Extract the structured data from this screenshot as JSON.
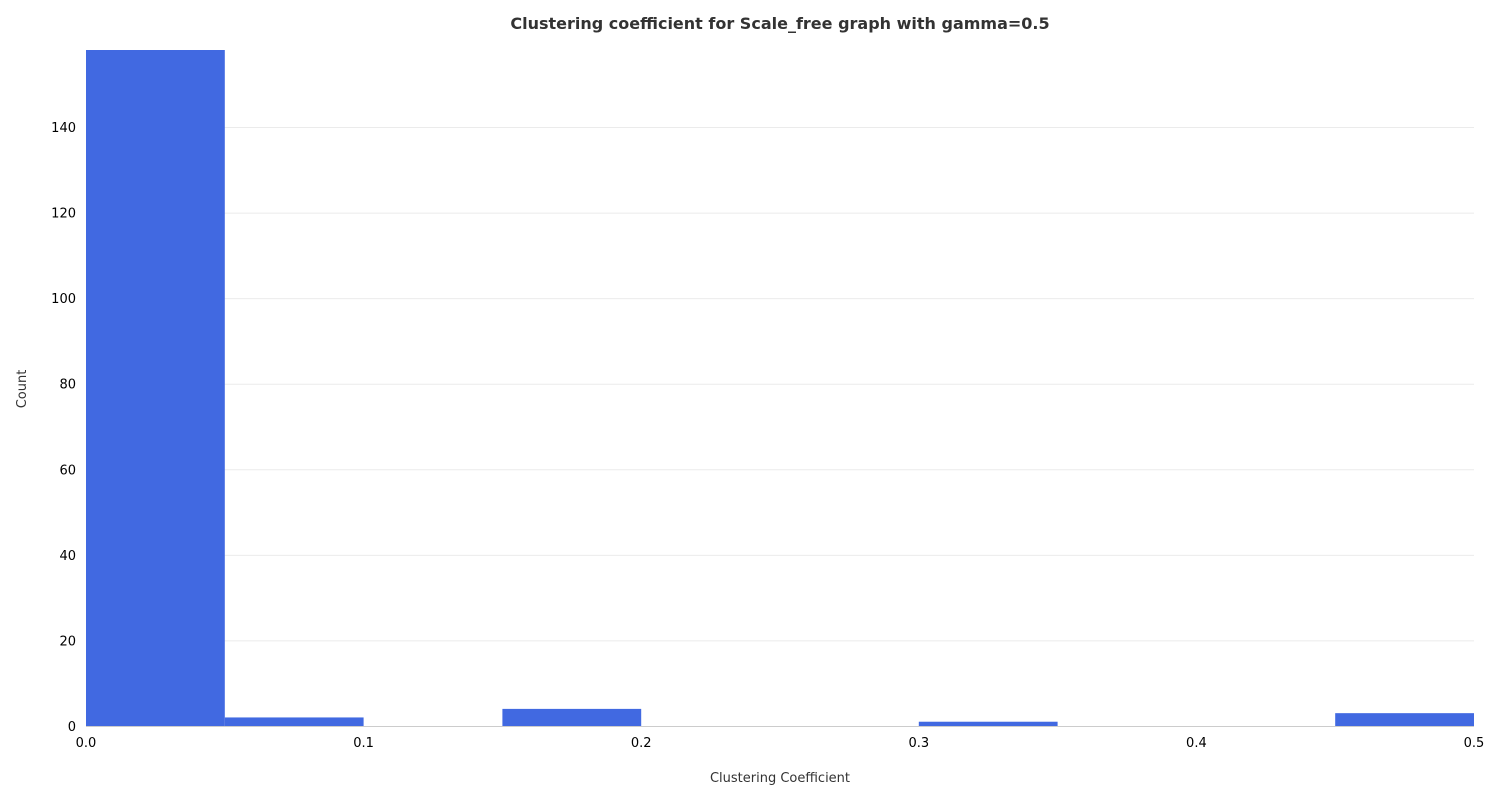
{
  "chart_data": {
    "type": "bar",
    "title": "Clustering coefficient for Scale_free graph with gamma=0.5",
    "xlabel": "Clustering Coefficient",
    "ylabel": "Count",
    "bins": [
      {
        "x0": 0.0,
        "x1": 0.05,
        "count": 158
      },
      {
        "x0": 0.05,
        "x1": 0.1,
        "count": 2
      },
      {
        "x0": 0.1,
        "x1": 0.15,
        "count": 0
      },
      {
        "x0": 0.15,
        "x1": 0.2,
        "count": 4
      },
      {
        "x0": 0.2,
        "x1": 0.25,
        "count": 0
      },
      {
        "x0": 0.25,
        "x1": 0.3,
        "count": 0
      },
      {
        "x0": 0.3,
        "x1": 0.35,
        "count": 1
      },
      {
        "x0": 0.35,
        "x1": 0.4,
        "count": 0
      },
      {
        "x0": 0.4,
        "x1": 0.45,
        "count": 0
      },
      {
        "x0": 0.45,
        "x1": 0.5,
        "count": 3
      }
    ],
    "xlim": [
      0,
      0.5
    ],
    "ylim": [
      0,
      158
    ],
    "x_ticks": [
      "0.0",
      "0.1",
      "0.2",
      "0.3",
      "0.4",
      "0.5"
    ],
    "y_ticks": [
      "0",
      "20",
      "40",
      "60",
      "80",
      "100",
      "120",
      "140"
    ],
    "grid": true,
    "bar_color": "#4169e1"
  }
}
